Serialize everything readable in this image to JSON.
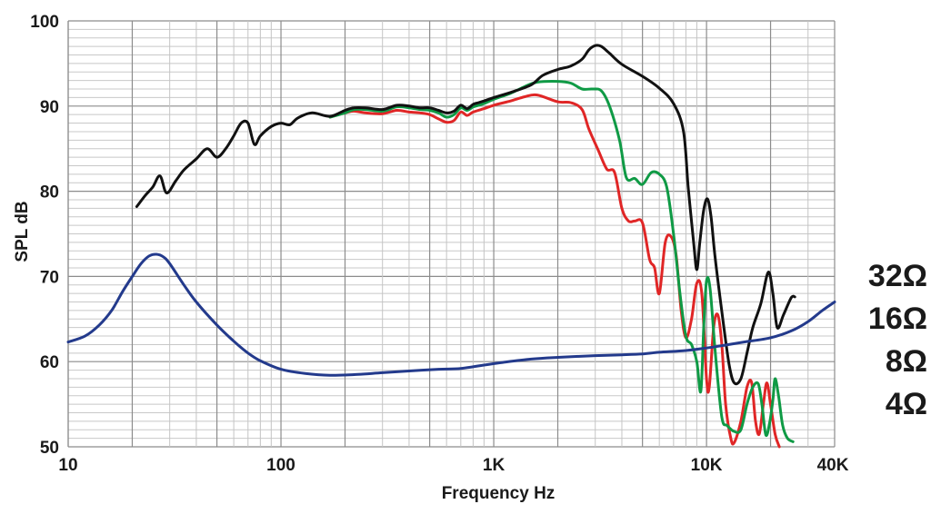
{
  "chart_data": {
    "type": "line",
    "title": "",
    "xlabel": "Frequency Hz",
    "ylabel": "SPL dB",
    "xscale": "log",
    "xlim": [
      10,
      40000
    ],
    "ylim": [
      50,
      100
    ],
    "grid": true,
    "x_ticks": [
      {
        "value": 10,
        "label": "10"
      },
      {
        "value": 100,
        "label": "100"
      },
      {
        "value": 1000,
        "label": "1K"
      },
      {
        "value": 10000,
        "label": "10K"
      },
      {
        "value": 40000,
        "label": "40K"
      }
    ],
    "y_ticks": [
      50,
      60,
      70,
      80,
      90,
      100
    ],
    "legend": {
      "placement": "right",
      "entries": [
        "32Ω",
        "16Ω",
        "8Ω",
        "4Ω"
      ]
    },
    "series": [
      {
        "name": "32Ω",
        "color": "#111111",
        "points": [
          [
            21,
            78.2
          ],
          [
            23,
            79.5
          ],
          [
            25,
            80.5
          ],
          [
            27,
            81.8
          ],
          [
            29,
            79.8
          ],
          [
            32,
            81.2
          ],
          [
            35,
            82.5
          ],
          [
            40,
            83.8
          ],
          [
            45,
            85
          ],
          [
            50,
            84
          ],
          [
            55,
            85
          ],
          [
            60,
            86.5
          ],
          [
            65,
            88
          ],
          [
            70,
            88
          ],
          [
            75,
            85.5
          ],
          [
            80,
            86.5
          ],
          [
            90,
            87.6
          ],
          [
            100,
            88
          ],
          [
            110,
            87.8
          ],
          [
            120,
            88.6
          ],
          [
            140,
            89.2
          ],
          [
            170,
            88.8
          ],
          [
            200,
            89.5
          ],
          [
            220,
            89.8
          ],
          [
            250,
            89.8
          ],
          [
            300,
            89.6
          ],
          [
            350,
            90.1
          ],
          [
            400,
            90.0
          ],
          [
            450,
            89.8
          ],
          [
            500,
            89.8
          ],
          [
            550,
            89.5
          ],
          [
            600,
            89.2
          ],
          [
            650,
            89.4
          ],
          [
            700,
            90.1
          ],
          [
            750,
            89.7
          ],
          [
            800,
            90.2
          ],
          [
            850,
            90.4
          ],
          [
            900,
            90.6
          ],
          [
            1000,
            91.0
          ],
          [
            1200,
            91.6
          ],
          [
            1500,
            92.5
          ],
          [
            1700,
            93.6
          ],
          [
            2000,
            94.3
          ],
          [
            2300,
            94.7
          ],
          [
            2600,
            95.5
          ],
          [
            2800,
            96.6
          ],
          [
            3000,
            97.1
          ],
          [
            3200,
            97.0
          ],
          [
            3500,
            96.2
          ],
          [
            4000,
            94.9
          ],
          [
            5000,
            93.5
          ],
          [
            6000,
            92.1
          ],
          [
            7000,
            90.3
          ],
          [
            7800,
            87.0
          ],
          [
            8200,
            80.5
          ],
          [
            8700,
            74.0
          ],
          [
            9000,
            70.8
          ],
          [
            9300,
            74.0
          ],
          [
            9700,
            77.8
          ],
          [
            10100,
            79.1
          ],
          [
            10500,
            77.0
          ],
          [
            11000,
            72.0
          ],
          [
            12000,
            64.5
          ],
          [
            12800,
            59.5
          ],
          [
            13500,
            57.5
          ],
          [
            14500,
            58.0
          ],
          [
            15500,
            61.0
          ],
          [
            16500,
            64.0
          ],
          [
            18000,
            66.8
          ],
          [
            19500,
            70.5
          ],
          [
            20500,
            68.0
          ],
          [
            21500,
            64.0
          ],
          [
            23000,
            65.5
          ],
          [
            25000,
            67.5
          ],
          [
            26000,
            67.6
          ]
        ]
      },
      {
        "name": "16Ω",
        "color": "#0f9a45",
        "points": [
          [
            170,
            88.7
          ],
          [
            200,
            89.2
          ],
          [
            220,
            89.6
          ],
          [
            250,
            89.6
          ],
          [
            300,
            89.4
          ],
          [
            350,
            89.9
          ],
          [
            400,
            89.8
          ],
          [
            450,
            89.6
          ],
          [
            500,
            89.5
          ],
          [
            550,
            89.2
          ],
          [
            600,
            88.7
          ],
          [
            650,
            89.0
          ],
          [
            700,
            89.8
          ],
          [
            750,
            89.5
          ],
          [
            800,
            89.9
          ],
          [
            850,
            90.1
          ],
          [
            900,
            90.3
          ],
          [
            1000,
            90.8
          ],
          [
            1200,
            91.5
          ],
          [
            1400,
            92.3
          ],
          [
            1600,
            92.8
          ],
          [
            2000,
            92.9
          ],
          [
            2300,
            92.7
          ],
          [
            2600,
            92.0
          ],
          [
            2900,
            92.0
          ],
          [
            3200,
            91.8
          ],
          [
            3500,
            90.0
          ],
          [
            3900,
            86.0
          ],
          [
            4200,
            81.6
          ],
          [
            4600,
            81.5
          ],
          [
            5000,
            80.8
          ],
          [
            5500,
            82.2
          ],
          [
            6000,
            82.0
          ],
          [
            6500,
            80.5
          ],
          [
            7000,
            75.0
          ],
          [
            7500,
            68.0
          ],
          [
            8000,
            63.0
          ],
          [
            8500,
            62.0
          ],
          [
            9000,
            60.0
          ],
          [
            9400,
            56.5
          ],
          [
            9700,
            64.0
          ],
          [
            10000,
            69.5
          ],
          [
            10400,
            68.5
          ],
          [
            11000,
            61.0
          ],
          [
            11800,
            53.5
          ],
          [
            12500,
            52.5
          ],
          [
            13500,
            51.8
          ],
          [
            14500,
            52.0
          ],
          [
            15500,
            55.0
          ],
          [
            16500,
            57.0
          ],
          [
            17500,
            57.4
          ],
          [
            18200,
            55.0
          ],
          [
            19000,
            51.4
          ],
          [
            19800,
            52.8
          ],
          [
            20500,
            55.5
          ],
          [
            21000,
            58.0
          ],
          [
            21800,
            56.0
          ],
          [
            22800,
            52.5
          ],
          [
            24000,
            51.0
          ],
          [
            25500,
            50.6
          ]
        ]
      },
      {
        "name": "8Ω",
        "color": "#e02626",
        "points": [
          [
            170,
            88.7
          ],
          [
            200,
            89.2
          ],
          [
            220,
            89.4
          ],
          [
            250,
            89.2
          ],
          [
            300,
            89.1
          ],
          [
            350,
            89.5
          ],
          [
            400,
            89.3
          ],
          [
            450,
            89.2
          ],
          [
            500,
            89.0
          ],
          [
            550,
            88.5
          ],
          [
            600,
            88.1
          ],
          [
            650,
            88.3
          ],
          [
            700,
            89.3
          ],
          [
            750,
            88.9
          ],
          [
            800,
            89.3
          ],
          [
            900,
            89.7
          ],
          [
            1000,
            90.1
          ],
          [
            1200,
            90.6
          ],
          [
            1400,
            91.1
          ],
          [
            1600,
            91.3
          ],
          [
            2000,
            90.5
          ],
          [
            2300,
            90.4
          ],
          [
            2600,
            89.6
          ],
          [
            2800,
            87.3
          ],
          [
            3100,
            84.8
          ],
          [
            3400,
            82.6
          ],
          [
            3700,
            82.2
          ],
          [
            4000,
            78.0
          ],
          [
            4300,
            76.5
          ],
          [
            4600,
            76.5
          ],
          [
            5000,
            76.3
          ],
          [
            5400,
            72.0
          ],
          [
            5700,
            71.0
          ],
          [
            6000,
            68.0
          ],
          [
            6400,
            74.0
          ],
          [
            6800,
            74.7
          ],
          [
            7200,
            72.5
          ],
          [
            7600,
            66.0
          ],
          [
            8000,
            62.8
          ],
          [
            8500,
            65.0
          ],
          [
            9000,
            69.2
          ],
          [
            9500,
            68.0
          ],
          [
            10000,
            58.0
          ],
          [
            10300,
            57.0
          ],
          [
            10800,
            64.0
          ],
          [
            11300,
            65.5
          ],
          [
            11800,
            62.0
          ],
          [
            12300,
            55.0
          ],
          [
            13000,
            51.0
          ],
          [
            13500,
            50.5
          ],
          [
            14500,
            53.0
          ],
          [
            15500,
            57.0
          ],
          [
            16300,
            57.5
          ],
          [
            17000,
            53.0
          ],
          [
            17700,
            51.5
          ],
          [
            18500,
            55.0
          ],
          [
            19200,
            57.5
          ],
          [
            20000,
            55.0
          ],
          [
            21000,
            51.5
          ],
          [
            22000,
            50.0
          ]
        ]
      },
      {
        "name": "4Ω",
        "color": "#233a8c",
        "points": [
          [
            10,
            62.3
          ],
          [
            12,
            63.0
          ],
          [
            14,
            64.3
          ],
          [
            16,
            66.0
          ],
          [
            18,
            68.2
          ],
          [
            20,
            70.0
          ],
          [
            22,
            71.5
          ],
          [
            24,
            72.4
          ],
          [
            26,
            72.6
          ],
          [
            28,
            72.3
          ],
          [
            30,
            71.5
          ],
          [
            35,
            69.0
          ],
          [
            40,
            67.0
          ],
          [
            50,
            64.3
          ],
          [
            60,
            62.4
          ],
          [
            70,
            61.0
          ],
          [
            80,
            60.1
          ],
          [
            100,
            59.1
          ],
          [
            130,
            58.6
          ],
          [
            170,
            58.4
          ],
          [
            230,
            58.5
          ],
          [
            300,
            58.7
          ],
          [
            400,
            58.9
          ],
          [
            550,
            59.1
          ],
          [
            700,
            59.2
          ],
          [
            900,
            59.6
          ],
          [
            1100,
            59.9
          ],
          [
            1500,
            60.3
          ],
          [
            2000,
            60.5
          ],
          [
            3000,
            60.7
          ],
          [
            4000,
            60.8
          ],
          [
            5000,
            60.9
          ],
          [
            6000,
            61.1
          ],
          [
            8000,
            61.3
          ],
          [
            10000,
            61.6
          ],
          [
            12000,
            61.9
          ],
          [
            15000,
            62.3
          ],
          [
            20000,
            62.8
          ],
          [
            25000,
            63.6
          ],
          [
            30000,
            64.7
          ],
          [
            35000,
            66.0
          ],
          [
            40000,
            67.0
          ]
        ]
      }
    ]
  }
}
